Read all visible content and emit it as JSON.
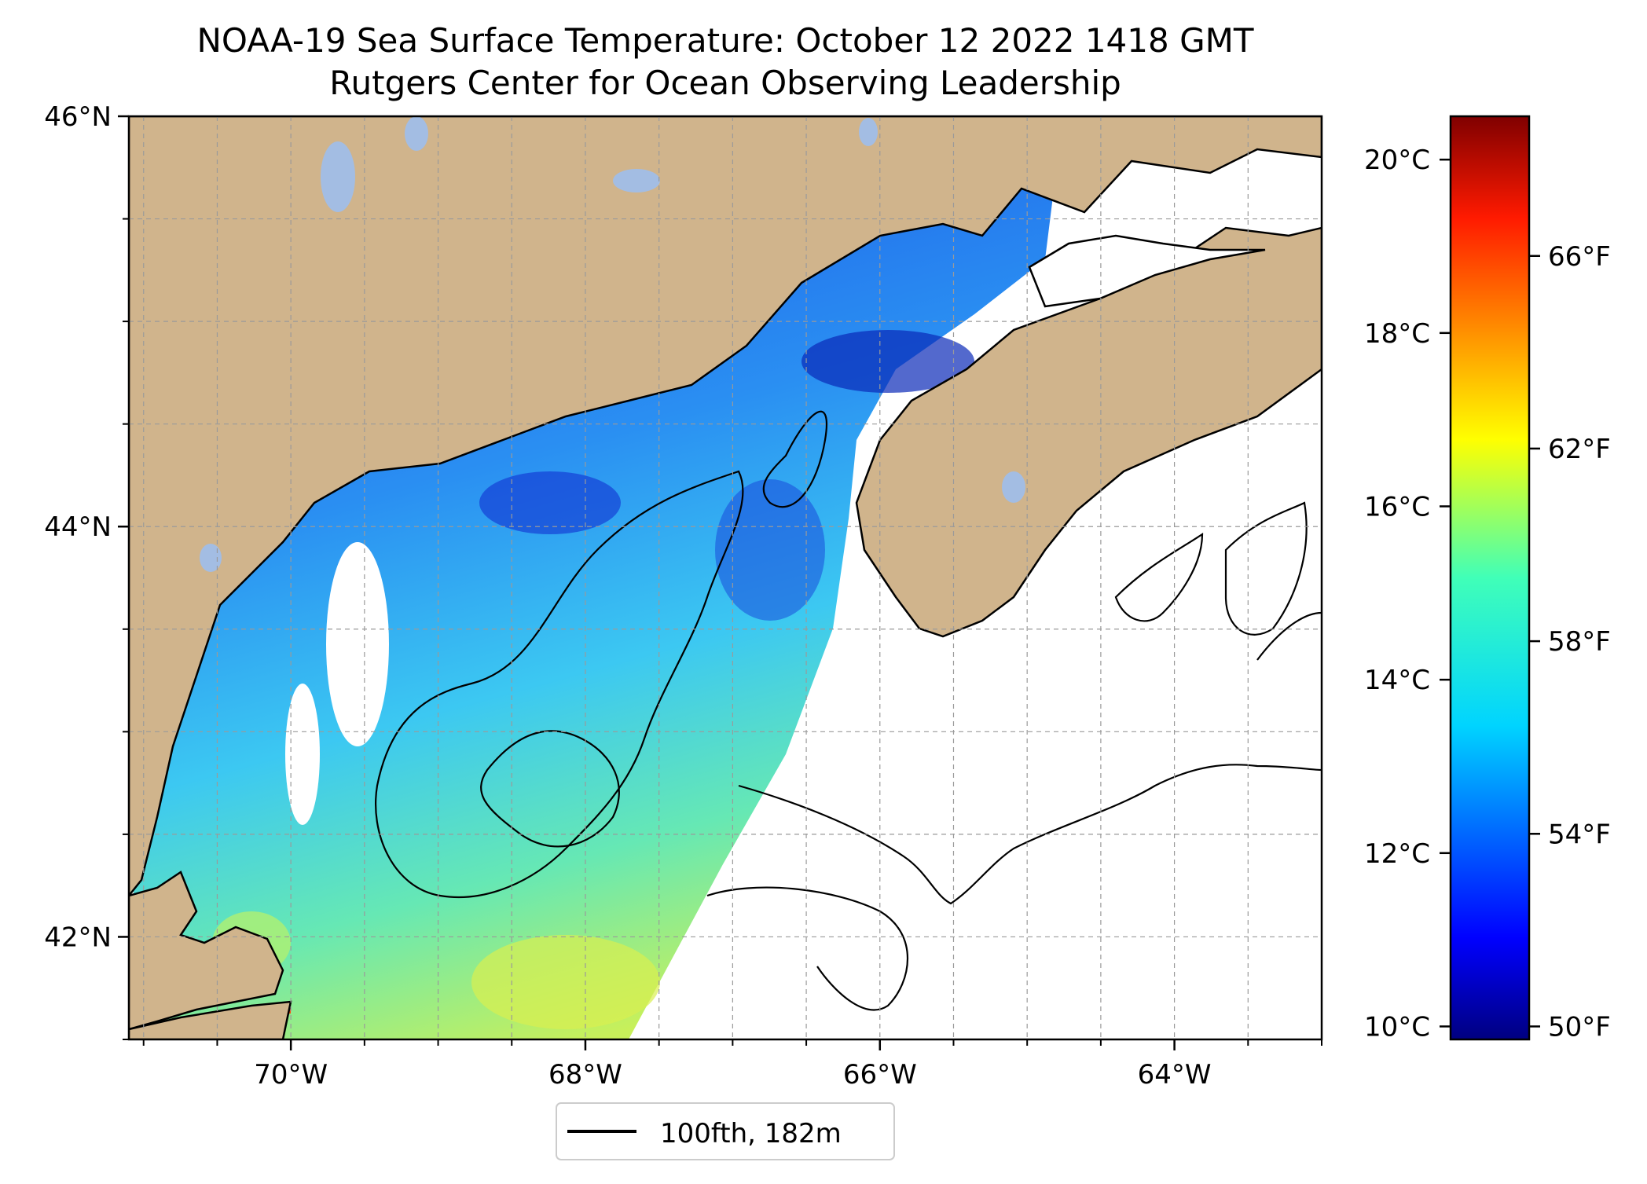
{
  "title": {
    "line1": "NOAA-19 Sea Surface Temperature: October 12 2022 1418 GMT",
    "line2": "Rutgers Center for Ocean Observing Leadership"
  },
  "map": {
    "lat_ticks": [
      {
        "value": 46,
        "label": "46°N"
      },
      {
        "value": 44,
        "label": "44°N"
      },
      {
        "value": 42,
        "label": "42°N"
      }
    ],
    "lon_ticks": [
      {
        "value": -70,
        "label": "70°W"
      },
      {
        "value": -68,
        "label": "68°W"
      },
      {
        "value": -66,
        "label": "66°W"
      },
      {
        "value": -64,
        "label": "64°W"
      }
    ],
    "lon_range": [
      -71.1,
      -63.0
    ],
    "lat_range": [
      41.5,
      46.0
    ],
    "land_color": "#d0b48c",
    "lake_color": "#a3bde3",
    "grid": "dashed"
  },
  "legend": {
    "label": "100fth, 182m"
  },
  "colorbar": {
    "celsius_ticks": [
      {
        "value": 20,
        "label": "20°C"
      },
      {
        "value": 18,
        "label": "18°C"
      },
      {
        "value": 16,
        "label": "16°C"
      },
      {
        "value": 14,
        "label": "14°C"
      },
      {
        "value": 12,
        "label": "12°C"
      },
      {
        "value": 10,
        "label": "10°C"
      }
    ],
    "fahrenheit_ticks": [
      {
        "value": 66,
        "label": "66°F"
      },
      {
        "value": 62,
        "label": "62°F"
      },
      {
        "value": 58,
        "label": "58°F"
      },
      {
        "value": 54,
        "label": "54°F"
      },
      {
        "value": 50,
        "label": "50°F"
      }
    ],
    "range_c": [
      9.85,
      20.5
    ],
    "colormap": "jet"
  }
}
